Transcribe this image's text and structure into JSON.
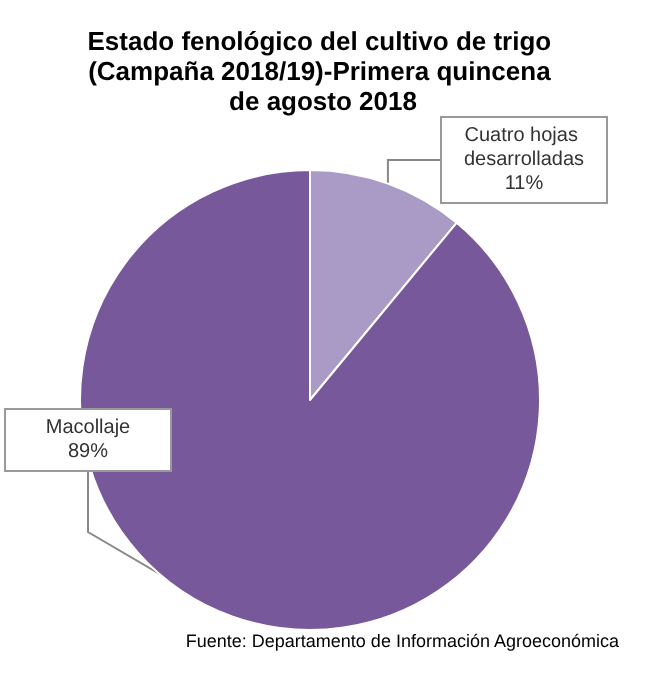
{
  "chart_data": {
    "type": "pie",
    "title": "Estado fenológico del cultivo de trigo (Campaña 2018/19)-Primera quincena de agosto 2018",
    "categories": [
      "Cuatro hojas desarrolladas",
      "Macollaje"
    ],
    "values": [
      11,
      89
    ],
    "colors": [
      "#a99bc6",
      "#77599b"
    ],
    "value_labels": [
      "11%",
      "89%"
    ],
    "legend": false,
    "annotations": [
      "Fuente: Departamento de Información Agroeconómica"
    ]
  }
}
